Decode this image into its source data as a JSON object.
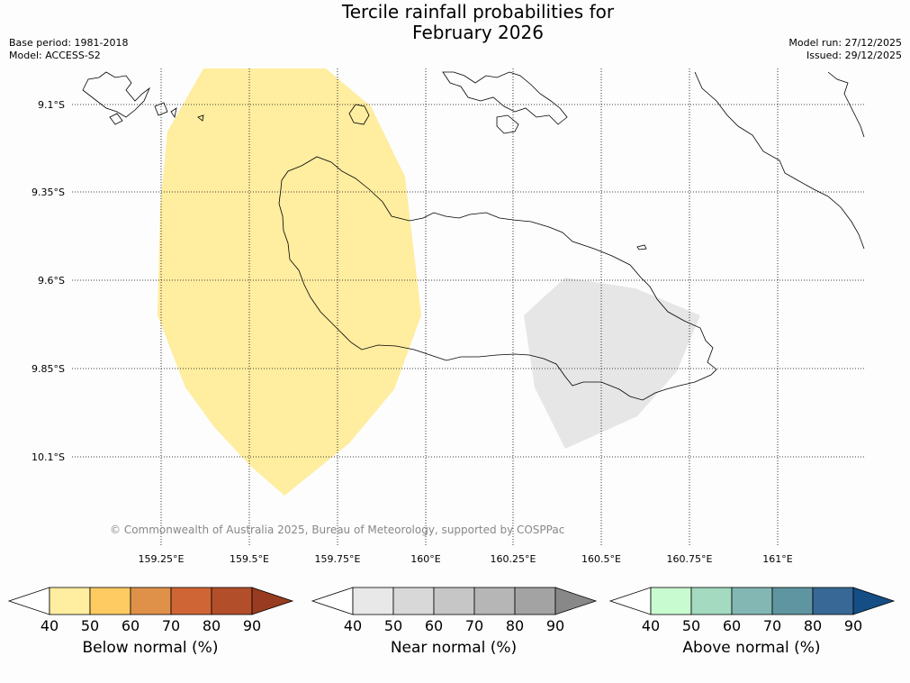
{
  "title": {
    "line1": "Tercile rainfall probabilities for",
    "line2": "February 2026"
  },
  "meta_left": {
    "base_period": "Base period: 1981-2018",
    "model": "Model: ACCESS-S2"
  },
  "meta_right": {
    "model_run": "Model run: 27/12/2025",
    "issued": "Issued: 29/12/2025"
  },
  "lat_labels": [
    "9.1°S",
    "9.35°S",
    "9.6°S",
    "9.85°S",
    "10.1°S"
  ],
  "lon_labels": [
    "159.25°E",
    "159.5°E",
    "159.75°E",
    "160°E",
    "160.25°E",
    "160.5°E",
    "160.75°E",
    "161°E"
  ],
  "credit": "© Commonwealth of Australia 2025, Bureau of Meteorology, supported by COSPPac",
  "colorbars": [
    {
      "label": "Below normal (%)",
      "colors": [
        "#ffffff",
        "#ffeda0",
        "#fecb62",
        "#e09149",
        "#cf6535",
        "#b34e2a",
        "#983b20"
      ]
    },
    {
      "label": "Near normal (%)",
      "colors": [
        "#ffffff",
        "#e8e8e8",
        "#d8d8d8",
        "#c6c6c6",
        "#b6b6b6",
        "#a3a3a3",
        "#888888"
      ]
    },
    {
      "label": "Above normal (%)",
      "colors": [
        "#ffffff",
        "#c9fbd1",
        "#a3dac0",
        "#83b7b3",
        "#5f95a1",
        "#386996",
        "#154d85"
      ]
    }
  ],
  "tick_values": [
    "40",
    "50",
    "60",
    "70",
    "80",
    "90"
  ],
  "chart_data": {
    "type": "map",
    "regions": [
      {
        "category": "Below normal",
        "probability_band": "40-50"
      },
      {
        "category": "Near normal",
        "probability_band": "40-50"
      }
    ]
  }
}
